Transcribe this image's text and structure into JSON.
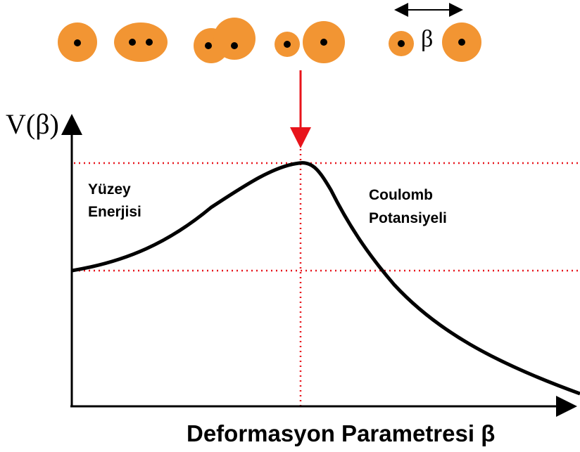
{
  "separation_label": "β",
  "axes": {
    "y_label": "V(β)",
    "x_label": "Deformasyon Parametresi β"
  },
  "regions": [
    {
      "lines": [
        "Yüzey",
        "Enerjisi"
      ]
    },
    {
      "lines": [
        "Coulomb",
        "Potansiyeli"
      ]
    }
  ]
}
